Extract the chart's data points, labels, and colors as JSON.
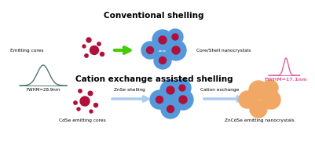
{
  "title_top": "Conventional shelling",
  "title_bottom": "Cation exchange assisted shelling",
  "label_emitting": "Emitting cores",
  "label_core_shell": "Core/Shell nanocrystals",
  "label_cdse": "CdSe emitting cores",
  "label_zncse": "ZnCdSe emitting nanocrystals",
  "label_znse": "ZnSe shelling",
  "label_cation": "Cation exchange",
  "fwhm_left": "FWHM=28.9nm",
  "fwhm_right": "FWHM=17.1nm",
  "core_color": "#b0103a",
  "shell_color_blue": "#5599dd",
  "shell_color_orange": "#f0a864",
  "arrow_green": "#44cc00",
  "arrow_blue_light": "#aaccee",
  "peak_color_left": "#507878",
  "peak_color_right": "#e060a0"
}
